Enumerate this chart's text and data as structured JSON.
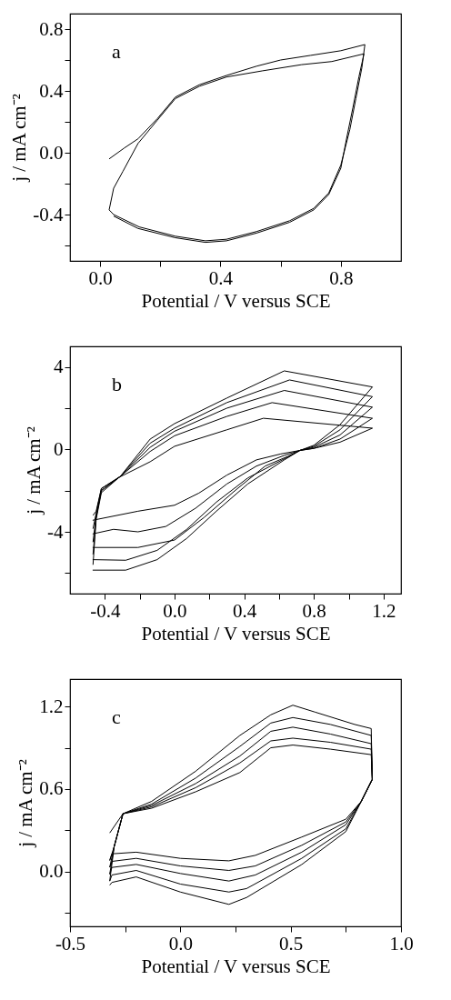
{
  "chart_data": [
    {
      "type": "line",
      "xlabel": "Potential / V versus SCE",
      "ylabel": "j / mA cm⁻²",
      "annotations": [
        "a"
      ],
      "xlim": [
        -0.1,
        1.0
      ],
      "ylim": [
        -0.7,
        0.9
      ],
      "xticks": [
        {
          "value": 0,
          "label": "0.0"
        },
        {
          "value": 0.2,
          "label": null
        },
        0.4,
        {
          "value": 0.6,
          "label": null
        },
        0.8
      ],
      "yticks": [
        {
          "value": -0.6,
          "label": null
        },
        -0.4,
        {
          "value": -0.2,
          "label": null
        },
        {
          "value": 0,
          "label": "0.0"
        },
        {
          "value": 0.2,
          "label": null
        },
        0.4,
        {
          "value": 0.6,
          "label": null
        },
        0.8
      ],
      "series": [
        {
          "color": "#000000",
          "x": [
            0.03,
            0.045,
            0.076,
            0.126,
            0.19,
            0.25,
            0.33,
            0.42,
            0.54,
            0.67,
            0.77,
            0.877
          ],
          "values": [
            -0.37,
            -0.23,
            -0.12,
            0.06,
            0.21,
            0.35,
            0.43,
            0.49,
            0.53,
            0.57,
            0.59,
            0.64
          ]
        },
        {
          "color": "#000000",
          "x": [
            0.877,
            0.86,
            0.84,
            0.82,
            0.8,
            0.76,
            0.71,
            0.63,
            0.52,
            0.42,
            0.35,
            0.25,
            0.126,
            0.045
          ],
          "values": [
            0.64,
            0.49,
            0.29,
            0.1,
            -0.1,
            -0.27,
            -0.37,
            -0.45,
            -0.52,
            -0.57,
            -0.58,
            -0.55,
            -0.49,
            -0.41
          ]
        },
        {
          "color": "#000000",
          "x": [
            0.03,
            0.08,
            0.126,
            0.19,
            0.25,
            0.33,
            0.42,
            0.52,
            0.6,
            0.7,
            0.8,
            0.88
          ],
          "values": [
            -0.04,
            0.03,
            0.09,
            0.22,
            0.36,
            0.44,
            0.5,
            0.56,
            0.6,
            0.63,
            0.66,
            0.7
          ]
        },
        {
          "color": "#000000",
          "x": [
            0.88,
            0.87,
            0.85,
            0.83,
            0.8,
            0.76,
            0.71,
            0.63,
            0.52,
            0.42,
            0.35,
            0.25,
            0.13,
            0.045,
            0.03
          ],
          "values": [
            0.7,
            0.55,
            0.35,
            0.15,
            -0.08,
            -0.26,
            -0.36,
            -0.44,
            -0.51,
            -0.56,
            -0.57,
            -0.54,
            -0.48,
            -0.4,
            -0.37
          ]
        }
      ]
    },
    {
      "type": "line",
      "xlabel": "Potential / V versus SCE",
      "ylabel": "j / mA cm⁻²",
      "annotations": [
        "b"
      ],
      "xlim": [
        -0.6,
        1.3
      ],
      "ylim": [
        -7,
        5
      ],
      "xticks": [
        -0.4,
        {
          "value": -0.2,
          "label": null
        },
        {
          "value": 0,
          "label": "0.0"
        },
        {
          "value": 0.2,
          "label": null
        },
        0.4,
        {
          "value": 0.6,
          "label": null
        },
        0.8,
        {
          "value": 1.0,
          "label": null
        },
        1.2
      ],
      "yticks": [
        {
          "value": -6,
          "label": null
        },
        -4,
        {
          "value": -2,
          "label": null
        },
        0,
        {
          "value": 2,
          "label": null
        },
        4
      ],
      "series": [
        {
          "color": "#000000",
          "x": [
            1.136,
            0.95,
            0.8,
            0.72,
            0.63,
            0.42,
            0.24,
            0.07,
            -0.1,
            -0.28,
            -0.47
          ],
          "values": [
            3.03,
            1.2,
            0.2,
            -0.05,
            -0.51,
            -1.68,
            -3.0,
            -4.32,
            -5.35,
            -5.86,
            -5.86
          ]
        },
        {
          "color": "#000000",
          "x": [
            -0.468,
            -0.45,
            -0.42,
            -0.31,
            -0.14,
            0,
            0.3,
            0.63,
            1.136
          ],
          "values": [
            -5.6,
            -3.4,
            -2.1,
            -1.3,
            0.5,
            1.25,
            2.49,
            3.81,
            3.03
          ]
        },
        {
          "color": "#000000",
          "x": [
            1.136,
            0.95,
            0.8,
            0.72,
            0.65,
            0.42,
            0.24,
            0.07,
            -0.1,
            -0.28,
            -0.47
          ],
          "values": [
            2.56,
            0.95,
            0.15,
            -0.05,
            -0.37,
            -1.39,
            -2.56,
            -3.88,
            -4.9,
            -5.38,
            -5.35
          ]
        },
        {
          "color": "#000000",
          "x": [
            -0.468,
            -0.45,
            -0.42,
            -0.31,
            -0.14,
            0,
            0.3,
            0.66,
            1.136
          ],
          "values": [
            -5.1,
            -3.3,
            -2.0,
            -1.3,
            0.3,
            1.03,
            2.27,
            3.37,
            2.56
          ]
        },
        {
          "color": "#000000",
          "x": [
            1.136,
            0.95,
            0.8,
            0.72,
            0.65,
            0.52,
            0.35,
            0.17,
            0,
            -0.21,
            -0.47
          ],
          "values": [
            2.05,
            0.7,
            0.1,
            -0.05,
            -0.34,
            -0.81,
            -1.98,
            -3.3,
            -4.4,
            -4.76,
            -4.76
          ]
        },
        {
          "color": "#000000",
          "x": [
            -0.468,
            -0.45,
            -0.42,
            -0.31,
            -0.14,
            0,
            0.3,
            0.63,
            1.136
          ],
          "values": [
            -4.5,
            -3.2,
            -2.0,
            -1.3,
            0.1,
            0.88,
            2.0,
            2.86,
            2.05
          ]
        },
        {
          "color": "#000000",
          "x": [
            1.136,
            0.95,
            0.8,
            0.72,
            0.63,
            0.47,
            0.3,
            0.12,
            -0.05,
            -0.21,
            -0.35,
            -0.47
          ],
          "values": [
            1.51,
            0.5,
            0.05,
            -0.05,
            -0.29,
            -0.81,
            -1.68,
            -2.86,
            -3.74,
            -4.0,
            -3.88,
            -4.1
          ]
        },
        {
          "color": "#000000",
          "x": [
            -0.468,
            -0.45,
            -0.42,
            -0.31,
            -0.14,
            0,
            0.3,
            0.56,
            1.136
          ],
          "values": [
            -3.85,
            -3.1,
            -1.9,
            -1.3,
            -0.1,
            0.66,
            1.6,
            2.27,
            1.51
          ]
        },
        {
          "color": "#000000",
          "x": [
            1.136,
            0.95,
            0.8,
            0.72,
            0.61,
            0.47,
            0.3,
            0.14,
            0,
            -0.21,
            -0.47
          ],
          "values": [
            1.03,
            0.35,
            0.05,
            -0.05,
            -0.22,
            -0.51,
            -1.25,
            -2.12,
            -2.71,
            -3.0,
            -3.44
          ]
        },
        {
          "color": "#000000",
          "x": [
            -0.468,
            -0.45,
            -0.42,
            -0.31,
            -0.14,
            0,
            0.3,
            0.51,
            1.136
          ],
          "values": [
            -3.2,
            -3.0,
            -1.9,
            -1.32,
            -0.6,
            0.15,
            0.95,
            1.51,
            1.03
          ]
        }
      ]
    },
    {
      "type": "line",
      "xlabel": "Potential / V versus SCE",
      "ylabel": "j / mA cm⁻²",
      "annotations": [
        "c"
      ],
      "xlim": [
        -0.5,
        1.0
      ],
      "ylim": [
        -0.4,
        1.4
      ],
      "xticks": [
        -0.5,
        {
          "value": -0.25,
          "label": null
        },
        {
          "value": 0,
          "label": "0.0"
        },
        {
          "value": 0.25,
          "label": null
        },
        0.5,
        {
          "value": 0.75,
          "label": null
        },
        {
          "value": 1.0,
          "label": "1.0"
        }
      ],
      "yticks": [
        {
          "value": -0.3,
          "label": null
        },
        {
          "value": 0,
          "label": "0.0"
        },
        {
          "value": 0.3,
          "label": null
        },
        0.6,
        {
          "value": 0.9,
          "label": null
        },
        1.2
      ],
      "series": [
        {
          "color": "#000000",
          "x": [
            -0.32,
            -0.26,
            -0.13,
            0.07,
            0.27,
            0.41,
            0.51,
            0.61,
            0.79,
            0.865,
            0.87
          ],
          "values": [
            0.28,
            0.42,
            0.51,
            0.73,
            0.99,
            1.14,
            1.21,
            1.16,
            1.07,
            1.04,
            0.67
          ]
        },
        {
          "color": "#000000",
          "x": [
            0.87,
            0.82,
            0.75,
            0.55,
            0.3,
            0.22,
            0,
            -0.2,
            -0.31,
            -0.32
          ],
          "values": [
            0.67,
            0.51,
            0.29,
            0.05,
            -0.19,
            -0.24,
            -0.15,
            -0.04,
            -0.08,
            -0.1
          ]
        },
        {
          "color": "#000000",
          "x": [
            -0.32,
            -0.3,
            -0.26,
            -0.13,
            0.07,
            0.27,
            0.41,
            0.51,
            0.68,
            0.865,
            0.87
          ],
          "values": [
            -0.07,
            0.18,
            0.42,
            0.49,
            0.68,
            0.91,
            1.08,
            1.12,
            1.07,
            0.99,
            0.67
          ]
        },
        {
          "color": "#000000",
          "x": [
            0.87,
            0.82,
            0.75,
            0.55,
            0.3,
            0.22,
            0,
            -0.2,
            -0.31,
            -0.32
          ],
          "values": [
            0.67,
            0.51,
            0.31,
            0.095,
            -0.125,
            -0.15,
            -0.092,
            0.007,
            -0.026,
            -0.07
          ]
        },
        {
          "color": "#000000",
          "x": [
            -0.32,
            -0.3,
            -0.26,
            -0.13,
            0.07,
            0.27,
            0.41,
            0.51,
            0.68,
            0.865,
            0.87
          ],
          "values": [
            -0.02,
            0.18,
            0.42,
            0.48,
            0.64,
            0.84,
            1.02,
            1.05,
            1.0,
            0.93,
            0.67
          ]
        },
        {
          "color": "#000000",
          "x": [
            0.87,
            0.82,
            0.75,
            0.55,
            0.34,
            0.22,
            0,
            -0.2,
            -0.31,
            -0.32
          ],
          "values": [
            0.67,
            0.51,
            0.34,
            0.14,
            -0.026,
            -0.07,
            -0.015,
            0.051,
            0.029,
            -0.02
          ]
        },
        {
          "color": "#000000",
          "x": [
            -0.32,
            -0.3,
            -0.26,
            -0.13,
            0.07,
            0.27,
            0.41,
            0.51,
            0.68,
            0.865,
            0.87
          ],
          "values": [
            0.03,
            0.18,
            0.42,
            0.47,
            0.61,
            0.79,
            0.95,
            0.97,
            0.94,
            0.89,
            0.67
          ]
        },
        {
          "color": "#000000",
          "x": [
            0.87,
            0.82,
            0.75,
            0.55,
            0.34,
            0.22,
            0,
            -0.2,
            -0.31,
            -0.32
          ],
          "values": [
            0.67,
            0.51,
            0.36,
            0.19,
            0.04,
            0.007,
            0.04,
            0.095,
            0.073,
            0.03
          ]
        },
        {
          "color": "#000000",
          "x": [
            -0.32,
            -0.3,
            -0.26,
            -0.13,
            0.07,
            0.27,
            0.41,
            0.51,
            0.68,
            0.865,
            0.87
          ],
          "values": [
            0.08,
            0.18,
            0.42,
            0.46,
            0.58,
            0.72,
            0.9,
            0.92,
            0.89,
            0.85,
            0.67
          ]
        },
        {
          "color": "#000000",
          "x": [
            0.87,
            0.82,
            0.75,
            0.55,
            0.34,
            0.22,
            0,
            -0.2,
            -0.31,
            -0.32
          ],
          "values": [
            0.67,
            0.51,
            0.38,
            0.25,
            0.117,
            0.077,
            0.095,
            0.14,
            0.128,
            0.08
          ]
        }
      ]
    }
  ]
}
